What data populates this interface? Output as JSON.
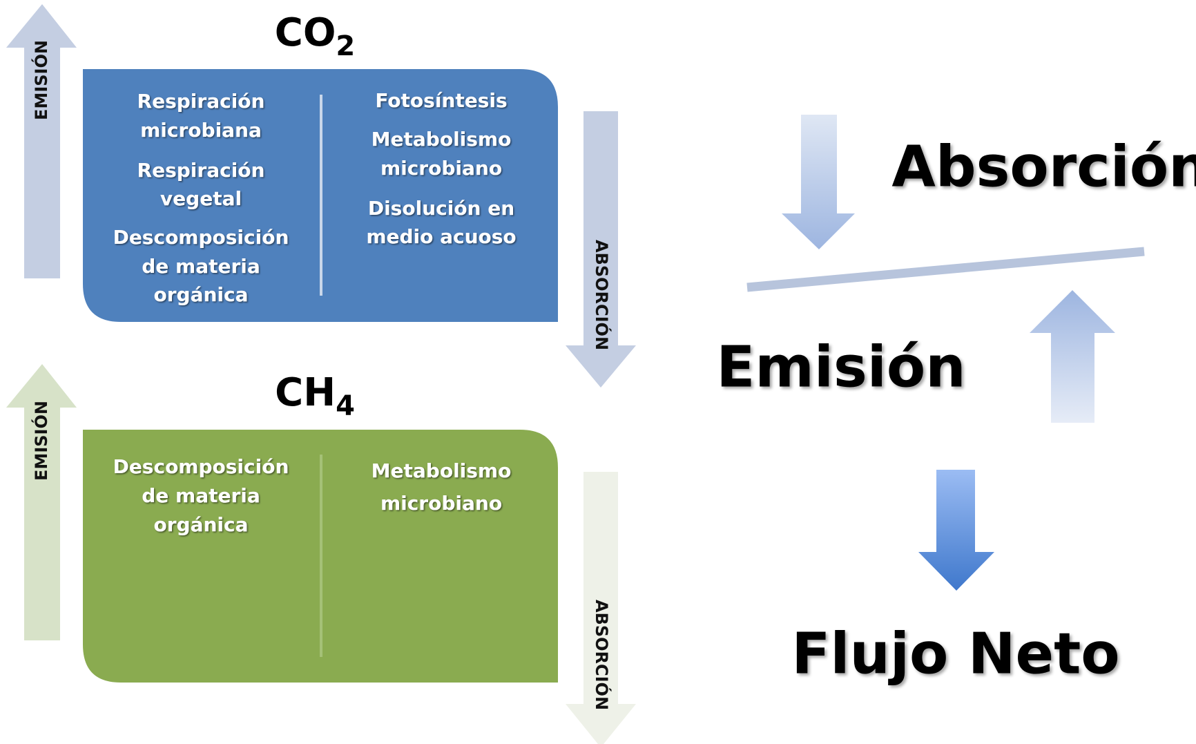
{
  "co2": {
    "title": "CO",
    "subscript": "2",
    "emission_label": "EMISIÓN",
    "absorption_label": "ABSORCIÓN",
    "emission_items": [
      [
        "Respiración",
        "microbiana"
      ],
      [
        "Respiración",
        "vegetal"
      ],
      [
        "Descomposición",
        "de materia",
        "orgánica"
      ]
    ],
    "absorption_items": [
      [
        "Fotosíntesis"
      ],
      [
        "Metabolismo",
        "microbiano"
      ],
      [
        "Disolución en",
        "medio acuoso"
      ]
    ]
  },
  "ch4": {
    "title": "CH",
    "subscript": "4",
    "emission_label": "EMISIÓN",
    "absorption_label": "ABSORCIÓN",
    "emission_items": [
      [
        "Descomposición",
        "de materia",
        "orgánica"
      ]
    ],
    "absorption_items": [
      [
        "Metabolismo",
        "microbiano"
      ]
    ]
  },
  "balance": {
    "absorption": "Absorción",
    "emission": "Emisión",
    "net_flux": "Flujo Neto"
  }
}
